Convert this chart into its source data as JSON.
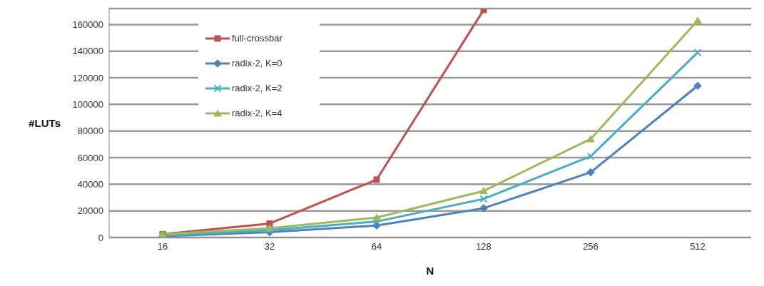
{
  "chart_data": {
    "type": "line",
    "xlabel": "N",
    "ylabel": "#LUTs",
    "categories": [
      "16",
      "32",
      "64",
      "128",
      "256",
      "512"
    ],
    "series": [
      {
        "name": "full-crossbar",
        "color": "#c0504d",
        "marker": "square",
        "values": [
          2500,
          10500,
          43500,
          171000,
          null,
          null
        ]
      },
      {
        "name": "radix-2, K=0",
        "color": "#4f81bd",
        "marker": "diamond",
        "values": [
          1000,
          4000,
          9000,
          22000,
          49000,
          114000
        ]
      },
      {
        "name": "radix-2, K=2",
        "color": "#4bacc6",
        "marker": "cross",
        "values": [
          1500,
          5500,
          12000,
          29000,
          61000,
          139000
        ]
      },
      {
        "name": "radix-2, K=4",
        "color": "#9bbb59",
        "marker": "triangle",
        "values": [
          2500,
          7000,
          15000,
          35000,
          74000,
          163000
        ]
      }
    ],
    "ylim": [
      0,
      172000
    ],
    "yticks": [
      0,
      20000,
      40000,
      60000,
      80000,
      100000,
      120000,
      140000,
      160000
    ],
    "grid": "y",
    "legend": "top left"
  }
}
